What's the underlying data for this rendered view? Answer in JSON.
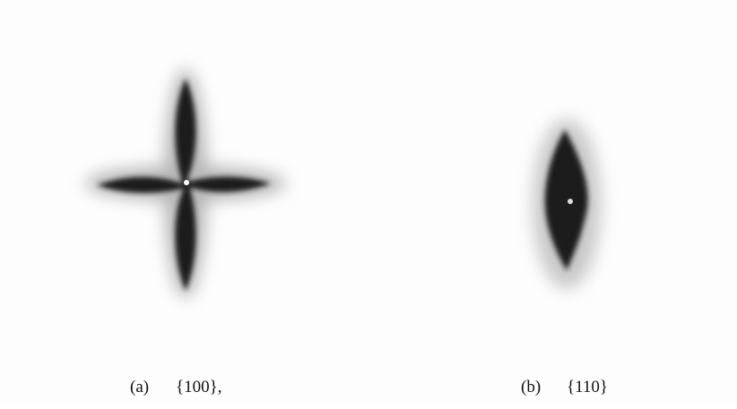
{
  "panels": [
    {
      "label": "(a)",
      "caption": "{100},"
    },
    {
      "label": "(b)",
      "caption": "{110}"
    }
  ]
}
